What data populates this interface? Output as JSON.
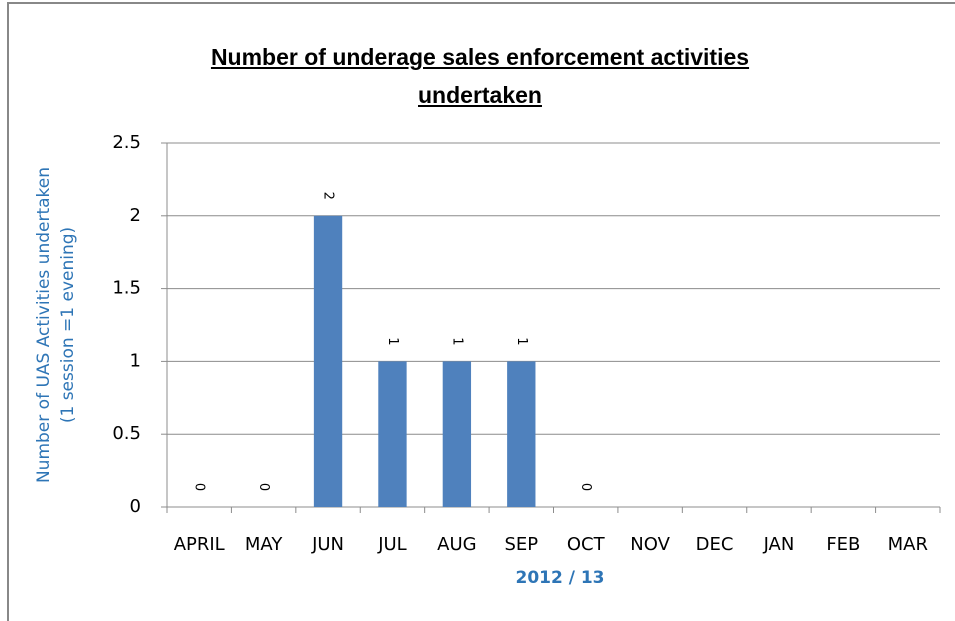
{
  "chart_data": {
    "type": "bar",
    "title": "Number of underage sales enforcement activities undertaken",
    "y_label": [
      "Number of UAS Activities undertaken",
      "(1 session =1 evening)"
    ],
    "x_label": "2012 / 13",
    "categories": [
      "APRIL",
      "MAY",
      "JUN",
      "JUL",
      "AUG",
      "SEP",
      "OCT",
      "NOV",
      "DEC",
      "JAN",
      "FEB",
      "MAR"
    ],
    "values": [
      0,
      0,
      2,
      1,
      1,
      1,
      0,
      null,
      null,
      null,
      null,
      null
    ],
    "color": "#4f81bd",
    "ylim": [
      0,
      2.5
    ],
    "yticks": [
      0,
      0.5,
      1,
      1.5,
      2,
      2.5
    ],
    "grid": true
  }
}
